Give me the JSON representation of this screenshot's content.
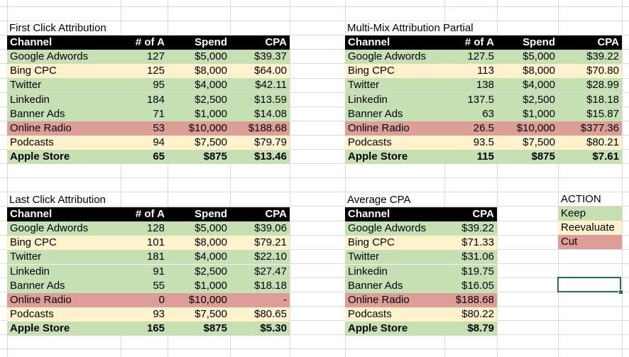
{
  "colors": {
    "keep": "#c6e0b4",
    "reevaluate": "#fff2cc",
    "cut": "#dd9e98",
    "header": "#000000"
  },
  "tables": [
    {
      "id": "first-click",
      "title": "First Click Attribution",
      "headers": [
        "Channel",
        "# of A",
        "Spend",
        "CPA"
      ],
      "rows": [
        {
          "cells": [
            "Google Adwords",
            "127",
            "$5,000",
            "$39.37"
          ],
          "status": "keep"
        },
        {
          "cells": [
            "Bing CPC",
            "125",
            "$8,000",
            "$64.00"
          ],
          "status": "reevaluate"
        },
        {
          "cells": [
            "Twitter",
            "95",
            "$4,000",
            "$42.11"
          ],
          "status": "keep"
        },
        {
          "cells": [
            "Linkedin",
            "184",
            "$2,500",
            "$13.59"
          ],
          "status": "keep"
        },
        {
          "cells": [
            "Banner Ads",
            "71",
            "$1,000",
            "$14.08"
          ],
          "status": "keep"
        },
        {
          "cells": [
            "Online Radio",
            "53",
            "$10,000",
            "$188.68"
          ],
          "status": "cut"
        },
        {
          "cells": [
            "Podcasts",
            "94",
            "$7,500",
            "$79.79"
          ],
          "status": "reevaluate"
        },
        {
          "cells": [
            "Apple Store",
            "65",
            "$875",
            "$13.46"
          ],
          "status": "keep",
          "bold": true
        }
      ]
    },
    {
      "id": "multi-mix",
      "title": "Multi-Mix Attribution Partial",
      "headers": [
        "Channel",
        "# of A",
        "Spend",
        "CPA"
      ],
      "rows": [
        {
          "cells": [
            "Google Adwords",
            "127.5",
            "$5,000",
            "$39.22"
          ],
          "status": "keep"
        },
        {
          "cells": [
            "Bing CPC",
            "113",
            "$8,000",
            "$70.80"
          ],
          "status": "reevaluate"
        },
        {
          "cells": [
            "Twitter",
            "138",
            "$4,000",
            "$28.99"
          ],
          "status": "keep"
        },
        {
          "cells": [
            "Linkedin",
            "137.5",
            "$2,500",
            "$18.18"
          ],
          "status": "keep"
        },
        {
          "cells": [
            "Banner Ads",
            "63",
            "$1,000",
            "$15.87"
          ],
          "status": "keep"
        },
        {
          "cells": [
            "Online Radio",
            "26.5",
            "$10,000",
            "$377.36"
          ],
          "status": "cut"
        },
        {
          "cells": [
            "Podcasts",
            "93.5",
            "$7,500",
            "$80.21"
          ],
          "status": "reevaluate"
        },
        {
          "cells": [
            "Apple Store",
            "115",
            "$875",
            "$7.61"
          ],
          "status": "keep",
          "bold": true
        }
      ]
    },
    {
      "id": "last-click",
      "title": "Last Click Attribution",
      "headers": [
        "Channel",
        "# of A",
        "Spend",
        "CPA"
      ],
      "rows": [
        {
          "cells": [
            "Google Adwords",
            "128",
            "$5,000",
            "$39.06"
          ],
          "status": "keep"
        },
        {
          "cells": [
            "Bing CPC",
            "101",
            "$8,000",
            "$79.21"
          ],
          "status": "reevaluate"
        },
        {
          "cells": [
            "Twitter",
            "181",
            "$4,000",
            "$22.10"
          ],
          "status": "keep"
        },
        {
          "cells": [
            "Linkedin",
            "91",
            "$2,500",
            "$27.47"
          ],
          "status": "keep"
        },
        {
          "cells": [
            "Banner Ads",
            "55",
            "$1,000",
            "$18.18"
          ],
          "status": "keep"
        },
        {
          "cells": [
            "Online Radio",
            "0",
            "$10,000",
            "-"
          ],
          "status": "cut"
        },
        {
          "cells": [
            "Podcasts",
            "93",
            "$7,500",
            "$80.65"
          ],
          "status": "reevaluate"
        },
        {
          "cells": [
            "Apple Store",
            "165",
            "$875",
            "$5.30"
          ],
          "status": "keep",
          "bold": true
        }
      ]
    },
    {
      "id": "average-cpa",
      "title": "Average CPA",
      "headers": [
        "Channel",
        "CPA"
      ],
      "rows": [
        {
          "cells": [
            "Google Adwords",
            "$39.22"
          ],
          "status": "keep"
        },
        {
          "cells": [
            "Bing CPC",
            "$71.33"
          ],
          "status": "reevaluate"
        },
        {
          "cells": [
            "Twitter",
            "$31.06"
          ],
          "status": "keep"
        },
        {
          "cells": [
            "Linkedin",
            "$19.75"
          ],
          "status": "keep"
        },
        {
          "cells": [
            "Banner Ads",
            "$16.05"
          ],
          "status": "keep"
        },
        {
          "cells": [
            "Online Radio",
            "$188.68"
          ],
          "status": "cut"
        },
        {
          "cells": [
            "Podcasts",
            "$80.22"
          ],
          "status": "reevaluate"
        },
        {
          "cells": [
            "Apple Store",
            "$8.79"
          ],
          "status": "keep",
          "bold": true
        }
      ]
    }
  ],
  "legend": {
    "title": "ACTION",
    "items": [
      {
        "label": "Keep",
        "status": "keep"
      },
      {
        "label": "Reevaluate",
        "status": "reevaluate"
      },
      {
        "label": "Cut",
        "status": "cut"
      }
    ]
  }
}
